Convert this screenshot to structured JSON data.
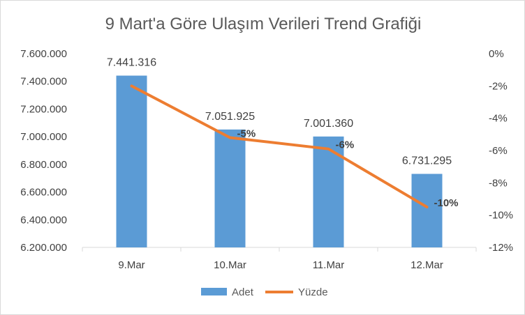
{
  "chart_data": {
    "type": "bar+line",
    "title": "9 Mart'a Göre Ulaşım Verileri Trend Grafiği",
    "categories": [
      "9.Mar",
      "10.Mar",
      "11.Mar",
      "12.Mar"
    ],
    "series": [
      {
        "name": "Adet",
        "type": "bar",
        "axis": "left",
        "values": [
          7441316,
          7051925,
          7001360,
          6731295
        ],
        "labels": [
          "7.441.316",
          "7.051.925",
          "7.001.360",
          "6.731.295"
        ],
        "color": "#5b9bd5"
      },
      {
        "name": "Yüzde",
        "type": "line",
        "axis": "right",
        "values": [
          -2,
          -5.2,
          -5.9,
          -9.5
        ],
        "labels": [
          "",
          "-5%",
          "-6%",
          "-10%"
        ],
        "color": "#ed7d31"
      }
    ],
    "y_left": {
      "min": 6200000,
      "max": 7600000,
      "ticks": [
        7600000,
        7400000,
        7200000,
        7000000,
        6800000,
        6600000,
        6400000,
        6200000
      ],
      "tick_labels": [
        "7.600.000",
        "7.400.000",
        "7.200.000",
        "7.000.000",
        "6.800.000",
        "6.600.000",
        "6.400.000",
        "6.200.000"
      ]
    },
    "y_right": {
      "min": -12,
      "max": 0,
      "ticks": [
        0,
        -2,
        -4,
        -6,
        -8,
        -10,
        -12
      ],
      "tick_labels": [
        "0%",
        "-2%",
        "-4%",
        "-6%",
        "-8%",
        "-10%",
        "-12%"
      ]
    },
    "grid": false,
    "legend": "bottom"
  }
}
